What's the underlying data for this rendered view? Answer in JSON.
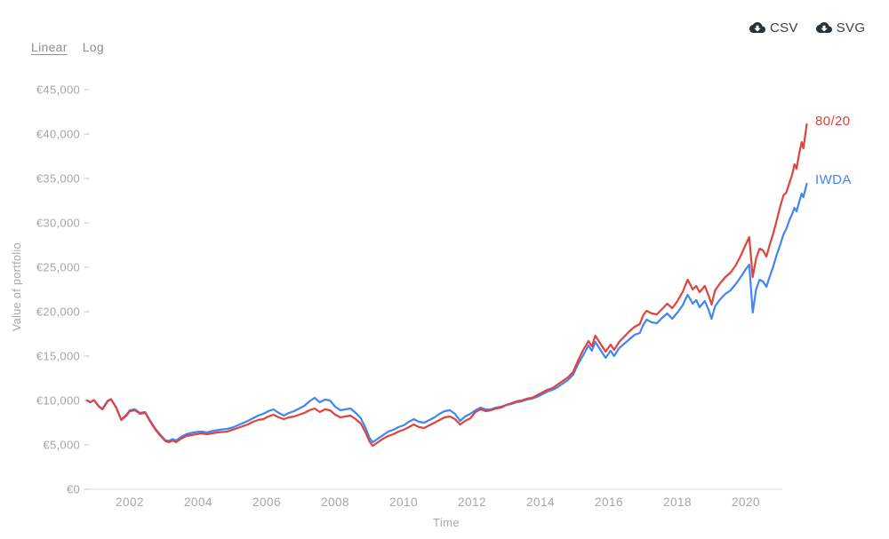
{
  "controls": {
    "scale_options": [
      {
        "label": "Linear",
        "active": true
      },
      {
        "label": "Log",
        "active": false
      }
    ]
  },
  "export_buttons": [
    {
      "label": "CSV",
      "icon": "cloud-download-icon"
    },
    {
      "label": "SVG",
      "icon": "cloud-download-icon"
    }
  ],
  "chart_data": {
    "type": "line",
    "title": "",
    "xlabel": "Time",
    "ylabel": "Value of portfolio",
    "grid": false,
    "legend_position": "line-end-labels",
    "axis_line_color": "#e3e3e3",
    "tick_text_color": "#a6a6a6",
    "tick_dash_color": "#cfcfcf",
    "xlim": [
      2000.75,
      2021.83
    ],
    "ylim": [
      0,
      45000
    ],
    "x_ticks": [
      2002,
      2004,
      2006,
      2008,
      2010,
      2012,
      2014,
      2016,
      2018,
      2020
    ],
    "y_ticks": [
      {
        "v": 0,
        "label": "€0"
      },
      {
        "v": 5000,
        "label": "€5,000"
      },
      {
        "v": 10000,
        "label": "€10,000"
      },
      {
        "v": 15000,
        "label": "€15,000"
      },
      {
        "v": 20000,
        "label": "€20,000"
      },
      {
        "v": 25000,
        "label": "€25,000"
      },
      {
        "v": 30000,
        "label": "€30,000"
      },
      {
        "v": 35000,
        "label": "€35,000"
      },
      {
        "v": 40000,
        "label": "€40,000"
      },
      {
        "v": 45000,
        "label": "€45,000"
      }
    ],
    "x": [
      2000.75,
      2000.85,
      2000.95,
      2001.1,
      2001.2,
      2001.35,
      2001.45,
      2001.6,
      2001.75,
      2001.9,
      2002.0,
      2002.15,
      2002.3,
      2002.45,
      2002.6,
      2002.75,
      2002.9,
      2003.05,
      2003.15,
      2003.25,
      2003.35,
      2003.5,
      2003.65,
      2003.8,
      2003.95,
      2004.1,
      2004.25,
      2004.4,
      2004.55,
      2004.7,
      2004.85,
      2005.0,
      2005.15,
      2005.3,
      2005.45,
      2005.6,
      2005.75,
      2005.9,
      2006.05,
      2006.2,
      2006.35,
      2006.5,
      2006.65,
      2006.8,
      2006.95,
      2007.1,
      2007.25,
      2007.4,
      2007.55,
      2007.7,
      2007.85,
      2008.0,
      2008.15,
      2008.3,
      2008.45,
      2008.6,
      2008.75,
      2008.9,
      2009.0,
      2009.1,
      2009.25,
      2009.4,
      2009.55,
      2009.7,
      2009.85,
      2010.0,
      2010.15,
      2010.3,
      2010.45,
      2010.6,
      2010.75,
      2010.9,
      2011.05,
      2011.2,
      2011.35,
      2011.5,
      2011.65,
      2011.8,
      2011.95,
      2012.1,
      2012.25,
      2012.4,
      2012.55,
      2012.7,
      2012.85,
      2013.0,
      2013.15,
      2013.3,
      2013.45,
      2013.6,
      2013.75,
      2013.9,
      2014.05,
      2014.2,
      2014.35,
      2014.5,
      2014.65,
      2014.8,
      2014.95,
      2015.1,
      2015.25,
      2015.4,
      2015.5,
      2015.6,
      2015.75,
      2015.9,
      2016.05,
      2016.15,
      2016.3,
      2016.45,
      2016.6,
      2016.75,
      2016.9,
      2017.0,
      2017.1,
      2017.25,
      2017.4,
      2017.55,
      2017.7,
      2017.85,
      2018.0,
      2018.15,
      2018.3,
      2018.45,
      2018.55,
      2018.65,
      2018.8,
      2018.9,
      2019.0,
      2019.1,
      2019.25,
      2019.4,
      2019.55,
      2019.7,
      2019.85,
      2020.0,
      2020.1,
      2020.2,
      2020.3,
      2020.4,
      2020.5,
      2020.6,
      2020.7,
      2020.8,
      2020.9,
      2021.0,
      2021.1,
      2021.18,
      2021.28,
      2021.35,
      2021.42,
      2021.48,
      2021.56,
      2021.63,
      2021.68,
      2021.78
    ],
    "series": [
      {
        "name": "80/20",
        "color": "#e0433e",
        "values": [
          10000,
          9800,
          10050,
          9300,
          9000,
          9900,
          10150,
          9200,
          7800,
          8300,
          8800,
          8900,
          8500,
          8600,
          7600,
          6700,
          6000,
          5400,
          5300,
          5500,
          5300,
          5700,
          6000,
          6100,
          6200,
          6300,
          6200,
          6300,
          6400,
          6450,
          6500,
          6700,
          6900,
          7100,
          7300,
          7600,
          7800,
          7900,
          8200,
          8400,
          8100,
          7900,
          8100,
          8200,
          8400,
          8600,
          8900,
          9100,
          8700,
          9000,
          8900,
          8400,
          8100,
          8200,
          8300,
          7900,
          7400,
          6300,
          5400,
          4900,
          5300,
          5700,
          6000,
          6200,
          6500,
          6700,
          7000,
          7300,
          7000,
          6900,
          7200,
          7500,
          7800,
          8100,
          8200,
          7900,
          7300,
          7700,
          8000,
          8700,
          9000,
          8800,
          8900,
          9100,
          9200,
          9500,
          9700,
          9900,
          10000,
          10200,
          10300,
          10600,
          10900,
          11200,
          11400,
          11800,
          12200,
          12600,
          13200,
          14500,
          15700,
          16700,
          16100,
          17300,
          16400,
          15500,
          16300,
          15700,
          16600,
          17200,
          17800,
          18300,
          18600,
          19600,
          20100,
          19800,
          19700,
          20300,
          20900,
          20400,
          21200,
          22200,
          23600,
          22500,
          22900,
          22200,
          22900,
          21900,
          20800,
          22400,
          23200,
          23900,
          24400,
          25200,
          26300,
          27600,
          28400,
          23900,
          26000,
          27100,
          26900,
          26200,
          27600,
          28800,
          30300,
          31800,
          33100,
          33400,
          34600,
          35400,
          36600,
          36100,
          37900,
          39100,
          38400,
          41100
        ]
      },
      {
        "name": "IWDA",
        "color": "#4285f4",
        "values": [
          10000,
          9800,
          10050,
          9350,
          9050,
          9950,
          10150,
          9250,
          7850,
          8400,
          8900,
          9000,
          8600,
          8700,
          7700,
          6800,
          6100,
          5500,
          5450,
          5650,
          5500,
          5900,
          6200,
          6350,
          6450,
          6500,
          6400,
          6550,
          6650,
          6750,
          6800,
          6950,
          7200,
          7450,
          7700,
          8000,
          8300,
          8500,
          8800,
          9000,
          8600,
          8300,
          8600,
          8800,
          9100,
          9400,
          9900,
          10300,
          9800,
          10100,
          10000,
          9300,
          8900,
          9000,
          9100,
          8600,
          8000,
          6800,
          5800,
          5300,
          5700,
          6100,
          6500,
          6700,
          7000,
          7200,
          7600,
          7900,
          7600,
          7500,
          7800,
          8100,
          8500,
          8800,
          8900,
          8500,
          7700,
          8200,
          8500,
          8900,
          9200,
          9000,
          9000,
          9200,
          9300,
          9500,
          9600,
          9800,
          9900,
          10100,
          10200,
          10400,
          10700,
          11000,
          11200,
          11500,
          11900,
          12300,
          12900,
          14100,
          15100,
          16200,
          15600,
          16600,
          15700,
          14800,
          15600,
          15000,
          15900,
          16400,
          16900,
          17400,
          17600,
          18500,
          19100,
          18800,
          18700,
          19300,
          19800,
          19200,
          19900,
          20700,
          21900,
          20900,
          21300,
          20500,
          21200,
          20300,
          19200,
          20600,
          21400,
          22000,
          22400,
          23100,
          23900,
          24800,
          25300,
          19900,
          22500,
          23600,
          23400,
          22800,
          24000,
          25100,
          26400,
          27500,
          28700,
          29300,
          30400,
          31000,
          31700,
          31300,
          32400,
          33300,
          32900,
          34400
        ]
      }
    ]
  }
}
